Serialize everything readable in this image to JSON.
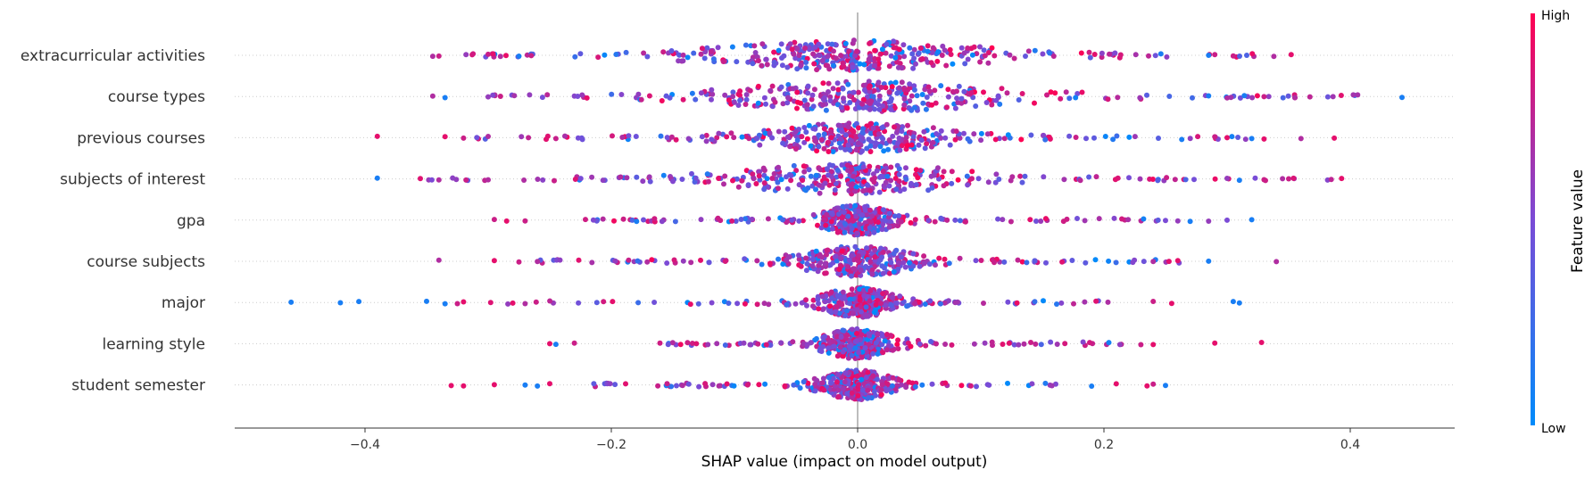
{
  "chart_data": {
    "type": "scatter",
    "subtype": "shap-beeswarm",
    "xlabel": "SHAP value (impact on model output)",
    "xlim": [
      -0.51,
      0.48
    ],
    "x_ticks": [
      -0.4,
      -0.2,
      0.0,
      0.2,
      0.4
    ],
    "x_tick_labels": [
      "−0.4",
      "−0.2",
      "0.0",
      "0.2",
      "0.4"
    ],
    "grid": false,
    "colorbar": {
      "title": "Feature value",
      "high_label": "High",
      "low_label": "Low",
      "high_color": "#ff0052",
      "low_color": "#008bfb"
    },
    "series": [
      {
        "name": "extracurricular activities",
        "range": [
          -0.345,
          0.352
        ],
        "core": [
          -0.12,
          0.11
        ],
        "spread": 0.42,
        "extremes": [
          [
            -0.345,
            0.7
          ],
          [
            -0.34,
            0.8
          ],
          [
            -0.318,
            0.6
          ],
          [
            -0.3,
            0.8
          ],
          [
            -0.29,
            0.7
          ],
          [
            -0.275,
            0.1
          ],
          [
            -0.265,
            0.8
          ],
          [
            0.285,
            0.1
          ],
          [
            0.29,
            0.8
          ],
          [
            0.305,
            0.8
          ],
          [
            0.338,
            0.7
          ],
          [
            0.352,
            0.9
          ]
        ]
      },
      {
        "name": "course types",
        "range": [
          -0.345,
          0.442
        ],
        "core": [
          -0.11,
          0.13
        ],
        "spread": 0.42,
        "extremes": [
          [
            -0.345,
            0.7
          ],
          [
            -0.335,
            0.1
          ],
          [
            -0.3,
            0.6
          ],
          [
            -0.29,
            0.8
          ],
          [
            0.285,
            0.1
          ],
          [
            0.3,
            0.7
          ],
          [
            0.33,
            0.8
          ],
          [
            0.355,
            0.7
          ],
          [
            0.442,
            0.1
          ]
        ]
      },
      {
        "name": "previous courses",
        "range": [
          -0.39,
          0.387
        ],
        "core": [
          -0.08,
          0.08
        ],
        "spread": 0.38,
        "extremes": [
          [
            -0.39,
            0.9
          ],
          [
            -0.335,
            0.9
          ],
          [
            -0.32,
            0.8
          ],
          [
            -0.3,
            0.7
          ],
          [
            0.29,
            0.8
          ],
          [
            0.3,
            0.9
          ],
          [
            0.32,
            0.1
          ],
          [
            0.33,
            0.9
          ],
          [
            0.36,
            0.7
          ],
          [
            0.387,
            0.9
          ]
        ]
      },
      {
        "name": "subjects of interest",
        "range": [
          -0.39,
          0.393
        ],
        "core": [
          -0.11,
          0.1
        ],
        "spread": 0.45,
        "extremes": [
          [
            -0.39,
            0.1
          ],
          [
            -0.34,
            0.7
          ],
          [
            -0.318,
            0.8
          ],
          [
            -0.3,
            0.7
          ],
          [
            0.3,
            0.6
          ],
          [
            0.31,
            0.1
          ],
          [
            0.33,
            0.8
          ],
          [
            0.345,
            0.7
          ],
          [
            0.35,
            0.8
          ],
          [
            0.393,
            0.9
          ]
        ]
      },
      {
        "name": "gpa",
        "range": [
          -0.295,
          0.32
        ],
        "core": [
          -0.03,
          0.03
        ],
        "spread": 0.35,
        "extremes": [
          [
            -0.295,
            0.8
          ],
          [
            -0.285,
            0.9
          ],
          [
            -0.27,
            0.8
          ],
          [
            0.25,
            0.5
          ],
          [
            0.26,
            0.6
          ],
          [
            0.27,
            0.1
          ],
          [
            0.285,
            0.6
          ],
          [
            0.3,
            0.5
          ],
          [
            0.32,
            0.1
          ]
        ]
      },
      {
        "name": "course subjects",
        "range": [
          -0.34,
          0.34
        ],
        "core": [
          -0.05,
          0.05
        ],
        "spread": 0.35,
        "extremes": [
          [
            -0.34,
            0.7
          ],
          [
            -0.295,
            0.9
          ],
          [
            -0.275,
            0.8
          ],
          [
            -0.26,
            0.7
          ],
          [
            0.24,
            0.7
          ],
          [
            0.26,
            0.9
          ],
          [
            0.285,
            0.1
          ],
          [
            0.34,
            0.7
          ]
        ]
      },
      {
        "name": "major",
        "range": [
          -0.46,
          0.31
        ],
        "core": [
          -0.03,
          0.03
        ],
        "spread": 0.3,
        "extremes": [
          [
            -0.46,
            0.1
          ],
          [
            -0.42,
            0.1
          ],
          [
            -0.405,
            0.1
          ],
          [
            -0.35,
            0.1
          ],
          [
            -0.335,
            0.1
          ],
          [
            -0.325,
            0.8
          ],
          [
            -0.32,
            0.9
          ],
          [
            -0.28,
            0.9
          ],
          [
            -0.27,
            0.7
          ],
          [
            0.24,
            0.8
          ],
          [
            0.255,
            0.9
          ],
          [
            0.305,
            0.1
          ],
          [
            0.31,
            0.1
          ]
        ]
      },
      {
        "name": "learning style",
        "range": [
          -0.25,
          0.328
        ],
        "core": [
          -0.03,
          0.03
        ],
        "spread": 0.3,
        "extremes": [
          [
            -0.25,
            0.9
          ],
          [
            -0.245,
            0.1
          ],
          [
            -0.23,
            0.8
          ],
          [
            0.23,
            0.8
          ],
          [
            0.24,
            0.9
          ],
          [
            0.29,
            0.9
          ],
          [
            0.328,
            0.9
          ]
        ]
      },
      {
        "name": "student semester",
        "range": [
          -0.33,
          0.25
        ],
        "core": [
          -0.03,
          0.03
        ],
        "spread": 0.3,
        "extremes": [
          [
            -0.33,
            0.9
          ],
          [
            -0.32,
            0.9
          ],
          [
            -0.295,
            0.9
          ],
          [
            -0.27,
            0.1
          ],
          [
            -0.26,
            0.1
          ],
          [
            -0.25,
            0.9
          ],
          [
            0.19,
            0.1
          ],
          [
            0.21,
            0.9
          ],
          [
            0.235,
            0.9
          ],
          [
            0.24,
            0.8
          ],
          [
            0.25,
            0.1
          ]
        ]
      }
    ]
  }
}
